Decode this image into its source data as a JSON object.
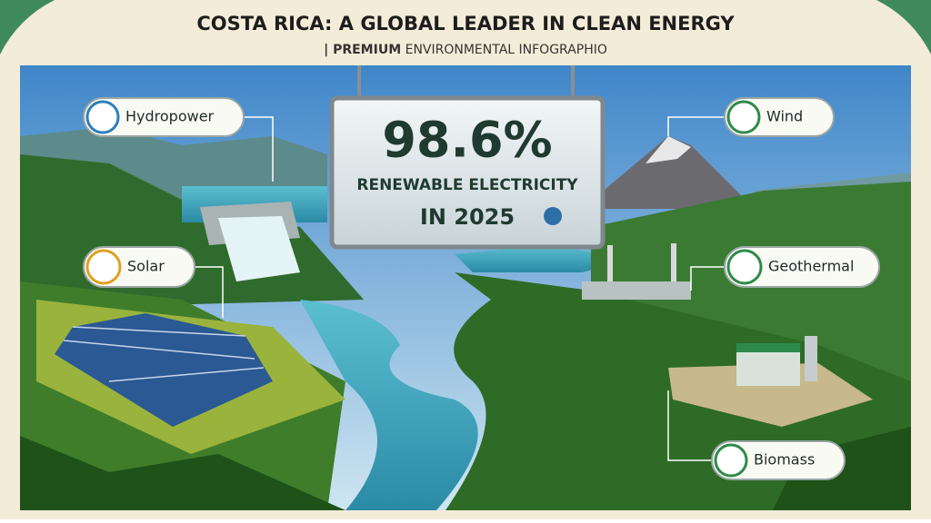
{
  "header": {
    "title": "COSTA RICA: A GLOBAL LEADER IN CLEAN ENERGY",
    "subtitle_lead": "| PREMIUM",
    "subtitle_rest": "ENVIRONMENTAL INFOGRAPHIO"
  },
  "sign": {
    "headline": "98.6%",
    "line1": "RENEWABLE ELECTRICITY",
    "line2": "IN 2025"
  },
  "labels": [
    "Hydropower",
    "Wind",
    "Solar",
    "Geothermal",
    "Biomass"
  ]
}
